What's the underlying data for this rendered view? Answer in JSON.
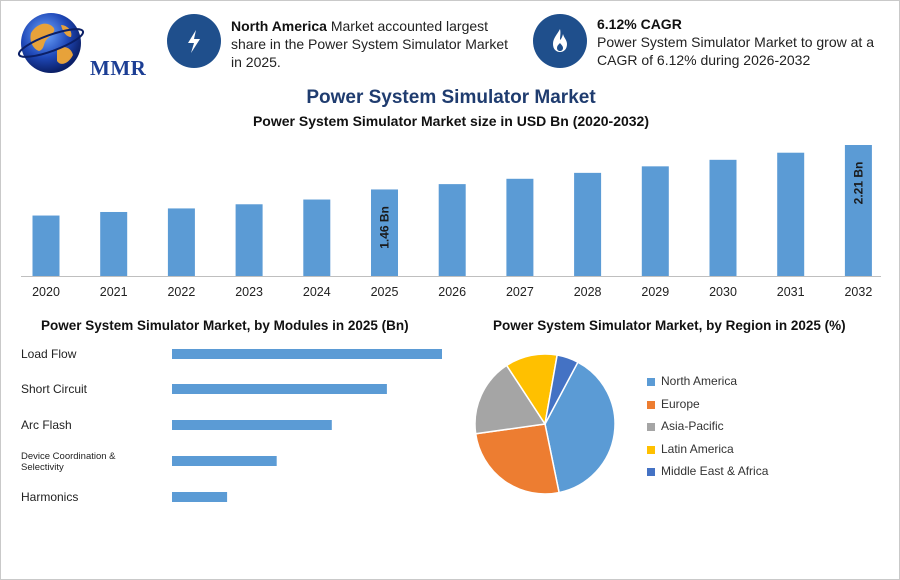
{
  "brand": {
    "name": "MMR"
  },
  "kpis": [
    {
      "icon": "lightning-icon",
      "bold": "North America",
      "text": " Market accounted largest share in the Power System Simulator Market in 2025."
    },
    {
      "icon": "flame-icon",
      "bold": "6.12% CAGR",
      "text": "Power System Simulator Market to grow at a CAGR of 6.12% during 2026-2032"
    }
  ],
  "colors": {
    "bar": "#5b9bd5",
    "kpi_circle": "#1f4f8c",
    "title": "#1f3c6f"
  },
  "chart_data": [
    {
      "type": "bar",
      "title": "Power System Simulator Market",
      "subtitle": "Power System Simulator Market size in USD Bn (2020-2032)",
      "categories": [
        "2020",
        "2021",
        "2022",
        "2023",
        "2024",
        "2025",
        "2026",
        "2027",
        "2028",
        "2029",
        "2030",
        "2031",
        "2032"
      ],
      "values": [
        1.02,
        1.08,
        1.14,
        1.21,
        1.29,
        1.46,
        1.55,
        1.64,
        1.74,
        1.85,
        1.96,
        2.08,
        2.21
      ],
      "data_labels": {
        "2025": "1.46 Bn",
        "2032": "2.21 Bn"
      },
      "ylim": [
        0,
        2.21
      ],
      "grid": false
    },
    {
      "type": "bar",
      "orientation": "horizontal",
      "title": "Power System Simulator Market, by Modules in 2025 (Bn)",
      "categories": [
        "Load Flow",
        "Short Circuit",
        "Arc Flash",
        "Device Coordination & Selectivity",
        "Harmonics"
      ],
      "values": [
        0.49,
        0.39,
        0.29,
        0.19,
        0.1
      ],
      "grid": false
    },
    {
      "type": "pie",
      "title": "Power System Simulator Market, by Region in 2025 (%)",
      "categories": [
        "North America",
        "Europe",
        "Asia-Pacific",
        "Latin America",
        "Middle East & Africa"
      ],
      "values": [
        39,
        26,
        18,
        12,
        5
      ],
      "colors": [
        "#5b9bd5",
        "#ed7d31",
        "#a5a5a5",
        "#ffc000",
        "#4472c4"
      ],
      "legend": "right"
    }
  ]
}
